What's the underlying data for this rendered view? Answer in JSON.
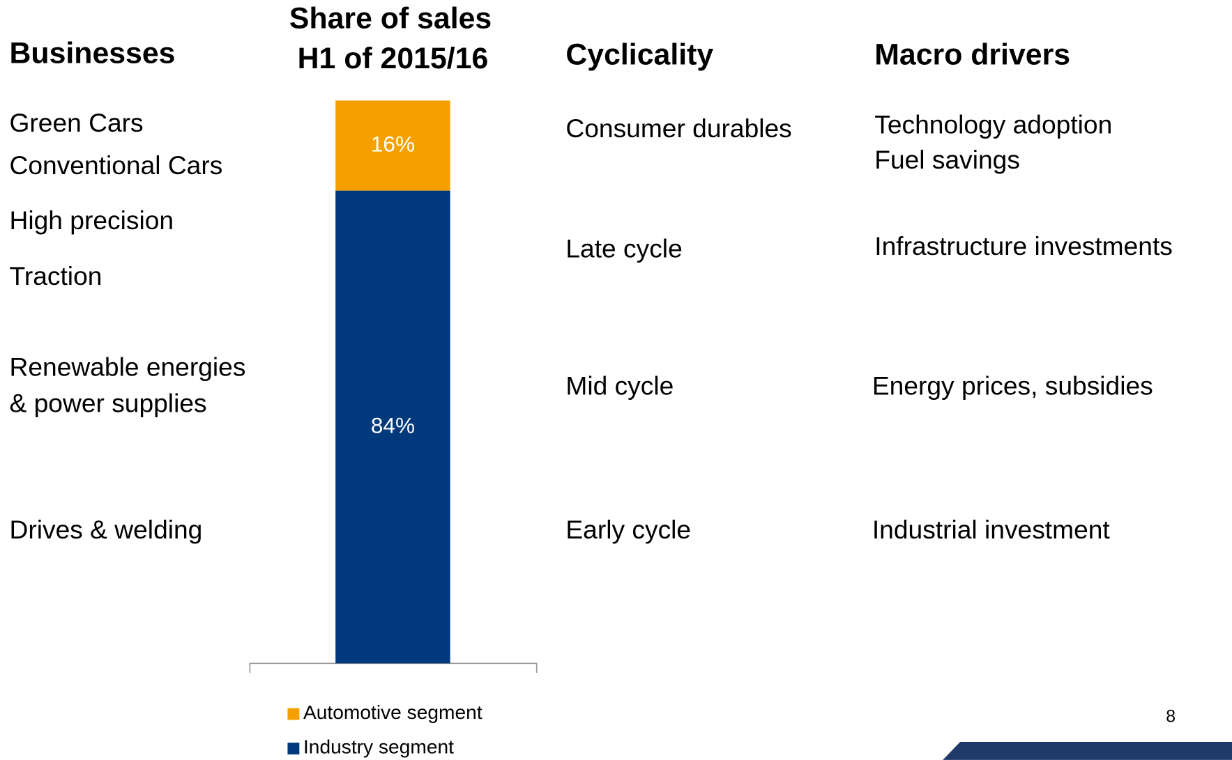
{
  "headers": {
    "businesses": "Businesses",
    "cyclicality": "Cyclicality",
    "macro_drivers": "Macro drivers"
  },
  "businesses": [
    [
      "Green Cars"
    ],
    [
      "Conventional Cars"
    ],
    [
      "High precision"
    ],
    [
      "Traction"
    ],
    [
      "Renewable energies",
      "& power supplies"
    ],
    [
      "Drives & welding"
    ]
  ],
  "cyclicality": [
    "Consumer durables",
    "Late cycle",
    "Mid cycle",
    "Early cycle"
  ],
  "macro_drivers": [
    [
      "Technology adoption",
      "Fuel savings"
    ],
    [
      "Infrastructure investments"
    ],
    [
      "Energy prices, subsidies"
    ],
    [
      "Industrial investment"
    ]
  ],
  "page_number": "8",
  "chart_data": {
    "type": "stacked-bar",
    "title": [
      "Share of sales",
      "H1 of 2015/16"
    ],
    "categories": [
      null
    ],
    "series": [
      {
        "name": "Automotive segment",
        "color": "#f5a000",
        "values": [
          16
        ],
        "value_labels": [
          "16%"
        ]
      },
      {
        "name": "Industry segment",
        "color": "#003a7d",
        "values": [
          84
        ],
        "value_labels": [
          "84%"
        ]
      }
    ],
    "ylim": [
      0,
      100
    ],
    "legend": "bottom"
  }
}
